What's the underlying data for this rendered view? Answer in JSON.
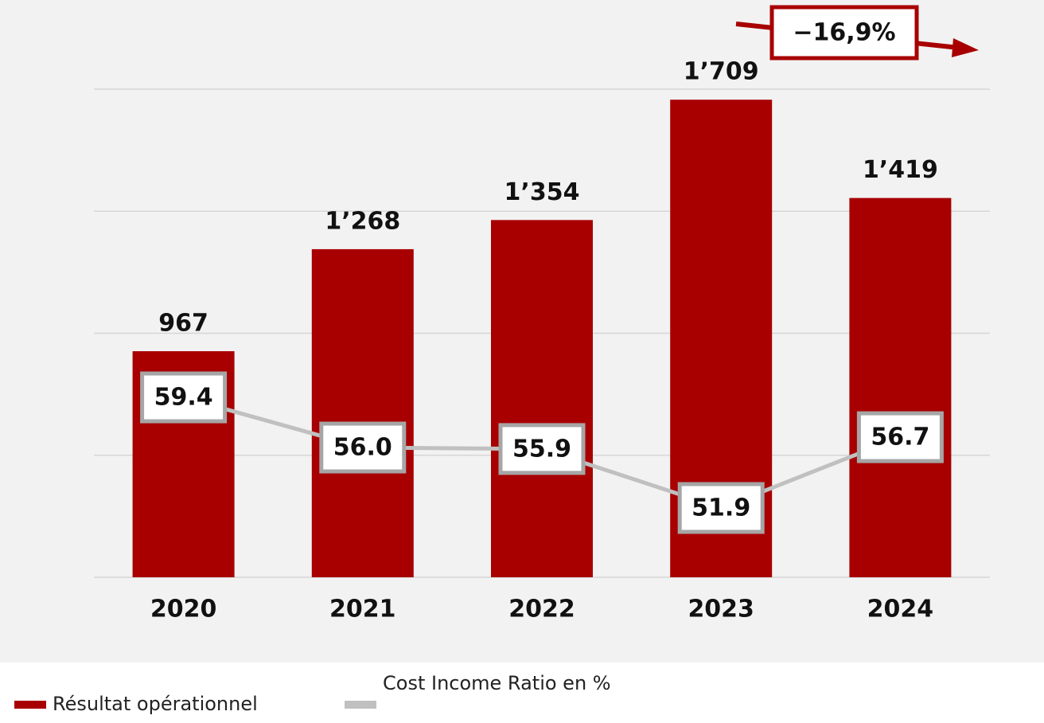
{
  "chart_data": {
    "type": "bar",
    "annotation": "−16,9%",
    "categories": [
      "2020",
      "2021",
      "2022",
      "2023",
      "2024"
    ],
    "series": [
      {
        "name": "Résultat opérationnel",
        "type": "bar",
        "color": "#a80000",
        "values": [
          967,
          1268,
          1354,
          1709,
          1419
        ],
        "value_labels": [
          "967",
          "1’268",
          "1’354",
          "1’709",
          "1’419"
        ]
      },
      {
        "name": "Cost Income Ratio en %",
        "type": "line",
        "axis": "y2",
        "color": "#c0c0c0",
        "values": [
          59.4,
          56.0,
          55.9,
          51.9,
          56.7
        ],
        "value_labels": [
          "59.4",
          "56.0",
          "55.9",
          "51.9",
          "56.7"
        ]
      }
    ],
    "ylim": [
      300,
      1740
    ],
    "y2lim": [
      47.2,
      80.3
    ],
    "grid": true
  }
}
